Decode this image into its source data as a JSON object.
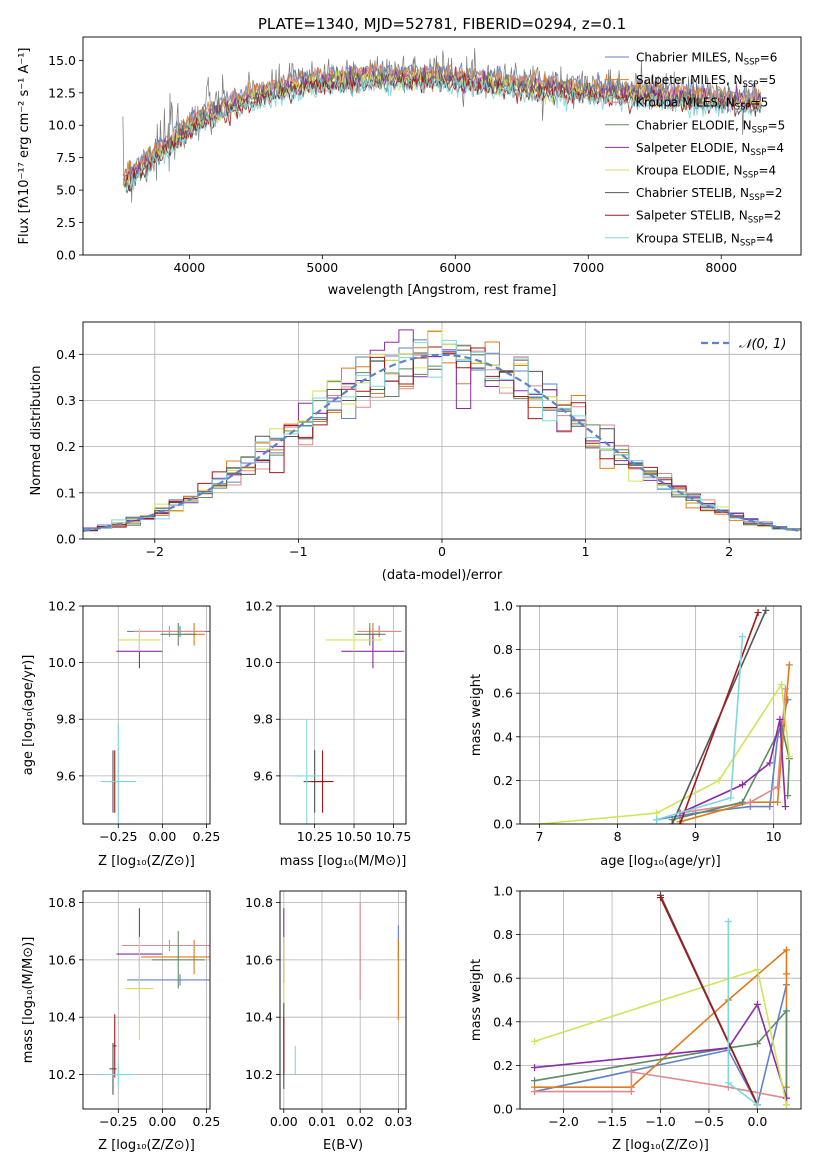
{
  "figure_title": "PLATE=1340, MJD=52781, FIBERID=0294, z=0.1",
  "colors": {
    "c1": "#5e83c8",
    "c2": "#e07b1c",
    "c3": "#e0888c",
    "c4": "#5e8a64",
    "c5": "#8a2ba8",
    "c6": "#d2e35a",
    "c7": "#555555",
    "c8": "#a01818",
    "c9": "#7fd7de"
  },
  "chart_data": [
    {
      "id": "spectrum",
      "type": "line",
      "title": "PLATE=1340, MJD=52781, FIBERID=0294, z=0.1",
      "xlabel": "wavelength [Angstrom, rest frame]",
      "ylabel": "Flux [fλ10⁻¹⁷ erg cm⁻² s⁻¹ A⁻¹]",
      "xlim": [
        3200,
        8600
      ],
      "ylim": [
        0,
        16.8
      ],
      "xticks": [
        4000,
        5000,
        6000,
        7000,
        8000
      ],
      "yticks": [
        0.0,
        2.5,
        5.0,
        7.5,
        10.0,
        12.5,
        15.0
      ],
      "grid": false,
      "legend_position": "right",
      "legend": [
        {
          "label": "Chabrier MILES, N",
          "sub": "SSP",
          "suffix": "=6",
          "color": "c1"
        },
        {
          "label": "Salpeter MILES, N",
          "sub": "SSP",
          "suffix": "=5",
          "color": "c2"
        },
        {
          "label": "Kroupa MILES, N",
          "sub": "SSP",
          "suffix": "=5",
          "color": "c3"
        },
        {
          "label": "Chabrier ELODIE, N",
          "sub": "SSP",
          "suffix": "=5",
          "color": "c4"
        },
        {
          "label": "Salpeter ELODIE, N",
          "sub": "SSP",
          "suffix": "=4",
          "color": "c5"
        },
        {
          "label": "Kroupa ELODIE, N",
          "sub": "SSP",
          "suffix": "=4",
          "color": "c6"
        },
        {
          "label": "Chabrier STELIB, N",
          "sub": "SSP",
          "suffix": "=2",
          "color": "c7"
        },
        {
          "label": "Salpeter STELIB, N",
          "sub": "SSP",
          "suffix": "=2",
          "color": "c8"
        },
        {
          "label": "Kroupa STELIB, N",
          "sub": "SSP",
          "suffix": "=4",
          "color": "c9"
        }
      ],
      "model_trend": [
        [
          3500,
          6.2
        ],
        [
          3700,
          7.8
        ],
        [
          3900,
          9.6
        ],
        [
          4000,
          10.5
        ],
        [
          4200,
          11.6
        ],
        [
          4500,
          12.8
        ],
        [
          4800,
          13.6
        ],
        [
          5000,
          14.0
        ],
        [
          5200,
          14.1
        ],
        [
          5500,
          14.2
        ],
        [
          5800,
          14.3
        ],
        [
          6000,
          14.1
        ],
        [
          6300,
          13.8
        ],
        [
          6600,
          13.5
        ],
        [
          7000,
          13.2
        ],
        [
          7400,
          12.9
        ],
        [
          8000,
          12.5
        ],
        [
          8300,
          12.3
        ]
      ],
      "data_trend": [
        [
          3500,
          6.0
        ],
        [
          3700,
          7.5
        ],
        [
          3900,
          9.4
        ],
        [
          4000,
          10.2
        ],
        [
          4200,
          11.4
        ],
        [
          4500,
          12.6
        ],
        [
          4800,
          13.5
        ],
        [
          5000,
          13.8
        ],
        [
          5200,
          14.0
        ],
        [
          5500,
          14.1
        ],
        [
          5800,
          14.2
        ],
        [
          6000,
          13.9
        ],
        [
          6300,
          13.7
        ],
        [
          6600,
          13.4
        ],
        [
          7000,
          13.0
        ],
        [
          7400,
          12.8
        ],
        [
          8000,
          12.2
        ],
        [
          8300,
          12.0
        ]
      ]
    },
    {
      "id": "residuals",
      "type": "histogram",
      "xlabel": "(data-model)/error",
      "ylabel": "Normed distribution",
      "xlim": [
        -2.5,
        2.5
      ],
      "ylim": [
        0,
        0.47
      ],
      "xticks": [
        -2,
        -1,
        0,
        1,
        2
      ],
      "yticks": [
        0.0,
        0.1,
        0.2,
        0.3,
        0.4
      ],
      "grid": true,
      "legend_position": "top-right",
      "legend": [
        {
          "label": "𝒩(0, 1)",
          "color": "c1",
          "style": "dashed"
        }
      ],
      "bin_width": 0.1
    },
    {
      "id": "age-vs-Z",
      "type": "errorbar",
      "xlabel": "Z [log₁₀(Z/Z⊙)]",
      "ylabel": "age  [log₁₀(age/yr)]",
      "xlim": [
        -0.45,
        0.27
      ],
      "ylim": [
        9.43,
        10.2
      ],
      "xticks": [
        -0.25,
        0.0,
        0.25
      ],
      "xtick_labels": [
        "−0.25",
        "0.00",
        "0.25"
      ],
      "yticks": [
        9.6,
        9.8,
        10.0,
        10.2
      ],
      "grid": true,
      "points": [
        {
          "series": "c1",
          "x": 0.1,
          "xerr": 0.3,
          "y": 10.11,
          "yerr": 0.02
        },
        {
          "series": "c2",
          "x": 0.18,
          "xerr": 0.06,
          "y": 10.1,
          "yerr": 0.04
        },
        {
          "series": "c3",
          "x": 0.04,
          "xerr": 0.2,
          "y": 10.11,
          "yerr": 0.02
        },
        {
          "series": "c4",
          "x": 0.09,
          "xerr": 0.1,
          "y": 10.1,
          "yerr": 0.04
        },
        {
          "series": "c5",
          "x": -0.13,
          "xerr": 0.13,
          "y": 10.04,
          "yerr": 0.06
        },
        {
          "series": "c6",
          "x": -0.13,
          "xerr": 0.12,
          "y": 10.08,
          "yerr": 0.04
        },
        {
          "series": "c7",
          "x": -0.28,
          "xerr": 0.02,
          "y": 9.58,
          "yerr": 0.11
        },
        {
          "series": "c8",
          "x": -0.27,
          "xerr": 0.01,
          "y": 9.58,
          "yerr": 0.11
        },
        {
          "series": "c9",
          "x": -0.25,
          "xerr": 0.1,
          "y": 9.58,
          "yerr": 0.2
        }
      ]
    },
    {
      "id": "age-vs-mass",
      "type": "errorbar",
      "xlabel": "mass [log₁₀(M/M⊙)]",
      "ylabel": "",
      "xlim": [
        10.03,
        10.83
      ],
      "ylim": [
        9.43,
        10.2
      ],
      "xticks": [
        10.25,
        10.5,
        10.75
      ],
      "xtick_labels": [
        "10.25",
        "10.50",
        "10.75"
      ],
      "yticks": [
        9.6,
        9.8,
        10.0,
        10.2
      ],
      "grid": true,
      "points": [
        {
          "series": "c1",
          "x": 10.66,
          "xerr": 0.06,
          "y": 10.11,
          "yerr": 0.02
        },
        {
          "series": "c2",
          "x": 10.62,
          "xerr": 0.04,
          "y": 10.1,
          "yerr": 0.04
        },
        {
          "series": "c3",
          "x": 10.66,
          "xerr": 0.14,
          "y": 10.11,
          "yerr": 0.02
        },
        {
          "series": "c4",
          "x": 10.6,
          "xerr": 0.1,
          "y": 10.1,
          "yerr": 0.04
        },
        {
          "series": "c5",
          "x": 10.62,
          "xerr": 0.2,
          "y": 10.04,
          "yerr": 0.06
        },
        {
          "series": "c6",
          "x": 10.5,
          "xerr": 0.18,
          "y": 10.08,
          "yerr": 0.04
        },
        {
          "series": "c7",
          "x": 10.25,
          "xerr": 0.07,
          "y": 9.58,
          "yerr": 0.11
        },
        {
          "series": "c8",
          "x": 10.3,
          "xerr": 0.07,
          "y": 9.58,
          "yerr": 0.11
        },
        {
          "series": "c9",
          "x": 10.2,
          "xerr": 0.08,
          "y": 9.6,
          "yerr": 0.2
        }
      ]
    },
    {
      "id": "weight-vs-age",
      "type": "line",
      "xlabel": "age  [log₁₀(age/yr)]",
      "ylabel": "mass weight",
      "xlim": [
        6.75,
        10.35
      ],
      "ylim": [
        0,
        1
      ],
      "xticks": [
        7,
        8,
        9,
        10
      ],
      "yticks": [
        0.0,
        0.2,
        0.4,
        0.6,
        0.8,
        1.0
      ],
      "grid": true,
      "series": [
        {
          "color": "c1",
          "points": [
            [
              8.5,
              0.02
            ],
            [
              9.0,
              0.05
            ],
            [
              9.7,
              0.08
            ],
            [
              9.95,
              0.08
            ],
            [
              10.05,
              0.4
            ],
            [
              10.18,
              0.57
            ]
          ]
        },
        {
          "color": "c2",
          "points": [
            [
              8.8,
              0.01
            ],
            [
              9.7,
              0.1
            ],
            [
              10.05,
              0.1
            ],
            [
              10.2,
              0.73
            ]
          ]
        },
        {
          "color": "c3",
          "points": [
            [
              8.8,
              0.05
            ],
            [
              9.7,
              0.1
            ],
            [
              10.05,
              0.17
            ],
            [
              10.15,
              0.62
            ]
          ]
        },
        {
          "color": "c4",
          "points": [
            [
              8.7,
              0.02
            ],
            [
              9.6,
              0.1
            ],
            [
              10.1,
              0.45
            ],
            [
              10.2,
              0.3
            ],
            [
              10.18,
              0.13
            ]
          ]
        },
        {
          "color": "c5",
          "points": [
            [
              8.8,
              0.05
            ],
            [
              9.6,
              0.18
            ],
            [
              9.95,
              0.28
            ],
            [
              10.08,
              0.48
            ],
            [
              10.15,
              0.08
            ]
          ]
        },
        {
          "color": "c6",
          "points": [
            [
              7.0,
              0.0
            ],
            [
              8.5,
              0.05
            ],
            [
              9.3,
              0.2
            ],
            [
              10.1,
              0.64
            ],
            [
              10.2,
              0.31
            ]
          ]
        },
        {
          "color": "c7",
          "points": [
            [
              8.7,
              0.0
            ],
            [
              9.9,
              0.98
            ]
          ]
        },
        {
          "color": "c8",
          "points": [
            [
              8.8,
              0.0
            ],
            [
              9.8,
              0.97
            ]
          ]
        },
        {
          "color": "c9",
          "points": [
            [
              8.5,
              0.02
            ],
            [
              9.45,
              0.12
            ],
            [
              9.6,
              0.86
            ]
          ]
        }
      ]
    },
    {
      "id": "mass-vs-Z",
      "type": "errorbar",
      "xlabel": "Z [log₁₀(Z/Z⊙)]",
      "ylabel": "mass [log₁₀(M/M⊙)]",
      "xlim": [
        -0.45,
        0.27
      ],
      "ylim": [
        10.08,
        10.84
      ],
      "xticks": [
        -0.25,
        0.0,
        0.25
      ],
      "xtick_labels": [
        "−0.25",
        "0.00",
        "0.25"
      ],
      "yticks": [
        10.2,
        10.4,
        10.6,
        10.8
      ],
      "grid": true,
      "points": [
        {
          "series": "c1",
          "x": 0.1,
          "xerr": 0.3,
          "y": 10.53,
          "yerr": 0.02
        },
        {
          "series": "c2",
          "x": 0.18,
          "xerr": 0.3,
          "y": 10.61,
          "yerr": 0.06
        },
        {
          "series": "c3",
          "x": 0.04,
          "xerr": 0.27,
          "y": 10.65,
          "yerr": 0.02
        },
        {
          "series": "c4",
          "x": 0.09,
          "xerr": 0.15,
          "y": 10.6,
          "yerr": 0.1
        },
        {
          "series": "c5",
          "x": -0.13,
          "xerr": 0.13,
          "y": 10.62,
          "yerr": 0.16
        },
        {
          "series": "c6",
          "x": -0.13,
          "xerr": 0.08,
          "y": 10.5,
          "yerr": 0.18
        },
        {
          "series": "c7",
          "x": -0.28,
          "xerr": 0.02,
          "y": 10.22,
          "yerr": 0.09
        },
        {
          "series": "c8",
          "x": -0.27,
          "xerr": 0.01,
          "y": 10.3,
          "yerr": 0.11
        },
        {
          "series": "c9",
          "x": -0.25,
          "xerr": 0.1,
          "y": 10.2,
          "yerr": 0.04
        }
      ]
    },
    {
      "id": "mass-vs-ebv",
      "type": "errorbar",
      "xlabel": "E(B-V)",
      "ylabel": "",
      "xlim": [
        -0.001,
        0.032
      ],
      "ylim": [
        10.08,
        10.84
      ],
      "xticks": [
        0.0,
        0.01,
        0.02,
        0.03
      ],
      "xtick_labels": [
        "0.00",
        "0.01",
        "0.02",
        "0.03"
      ],
      "yticks": [
        10.2,
        10.4,
        10.6,
        10.8
      ],
      "grid": true,
      "points": [
        {
          "series": "c1",
          "x": 0.03,
          "xerr": 0.0,
          "y": 10.66,
          "yerr": 0.06
        },
        {
          "series": "c2",
          "x": 0.03,
          "xerr": 0.0,
          "y": 10.53,
          "yerr": 0.14
        },
        {
          "series": "c3",
          "x": 0.02,
          "xerr": 0.0,
          "y": 10.63,
          "yerr": 0.17
        },
        {
          "series": "c5",
          "x": 0.0,
          "xerr": 0.0,
          "y": 10.65,
          "yerr": 0.13
        },
        {
          "series": "c6",
          "x": 0.0,
          "xerr": 0.0,
          "y": 10.5,
          "yerr": 0.18
        },
        {
          "series": "c7",
          "x": 0.0,
          "xerr": 0.0,
          "y": 10.3,
          "yerr": 0.15
        },
        {
          "series": "c8",
          "x": 0.0,
          "xerr": 0.0,
          "y": 10.3,
          "yerr": 0.1
        },
        {
          "series": "c9",
          "x": 0.003,
          "xerr": 0.0,
          "y": 10.25,
          "yerr": 0.05
        }
      ]
    },
    {
      "id": "weight-vs-Z",
      "type": "line",
      "xlabel": "Z [log₁₀(Z/Z⊙)]",
      "ylabel": "mass weight",
      "xlim": [
        -2.45,
        0.45
      ],
      "ylim": [
        0,
        1
      ],
      "xticks": [
        -2.0,
        -1.5,
        -1.0,
        -0.5,
        0.0
      ],
      "xtick_labels": [
        "−2.0",
        "−1.5",
        "−1.0",
        "−0.5",
        "0.0"
      ],
      "yticks": [
        0.0,
        0.2,
        0.4,
        0.6,
        0.8,
        1.0
      ],
      "grid": true,
      "series": [
        {
          "color": "c1",
          "points": [
            [
              -2.3,
              0.08
            ],
            [
              -0.3,
              0.27
            ],
            [
              0.0,
              0.02
            ],
            [
              0.3,
              0.57
            ]
          ]
        },
        {
          "color": "c2",
          "points": [
            [
              -2.3,
              0.1
            ],
            [
              -1.3,
              0.1
            ],
            [
              -0.3,
              0.5
            ],
            [
              0.3,
              0.73
            ],
            [
              0.3,
              0.62
            ],
            [
              0.3,
              0.1
            ]
          ]
        },
        {
          "color": "c3",
          "points": [
            [
              -2.3,
              0.08
            ],
            [
              -1.3,
              0.08
            ],
            [
              -1.3,
              0.17
            ],
            [
              -0.3,
              0.1
            ],
            [
              0.3,
              0.05
            ]
          ]
        },
        {
          "color": "c4",
          "points": [
            [
              -2.3,
              0.13
            ],
            [
              -0.3,
              0.28
            ],
            [
              0.0,
              0.3
            ],
            [
              0.3,
              0.45
            ],
            [
              0.3,
              0.02
            ]
          ]
        },
        {
          "color": "c5",
          "points": [
            [
              -2.3,
              0.19
            ],
            [
              -0.3,
              0.28
            ],
            [
              0.0,
              0.48
            ],
            [
              0.3,
              0.05
            ]
          ]
        },
        {
          "color": "c6",
          "points": [
            [
              -2.3,
              0.31
            ],
            [
              0.0,
              0.64
            ],
            [
              0.3,
              0.02
            ]
          ]
        },
        {
          "color": "c7",
          "points": [
            [
              -1.0,
              0.98
            ],
            [
              0.0,
              0.02
            ]
          ]
        },
        {
          "color": "c8",
          "points": [
            [
              -1.0,
              0.97
            ],
            [
              0.0,
              0.02
            ]
          ]
        },
        {
          "color": "c9",
          "points": [
            [
              -0.3,
              0.86
            ],
            [
              -0.3,
              0.12
            ],
            [
              0.0,
              0.02
            ]
          ]
        }
      ]
    }
  ]
}
